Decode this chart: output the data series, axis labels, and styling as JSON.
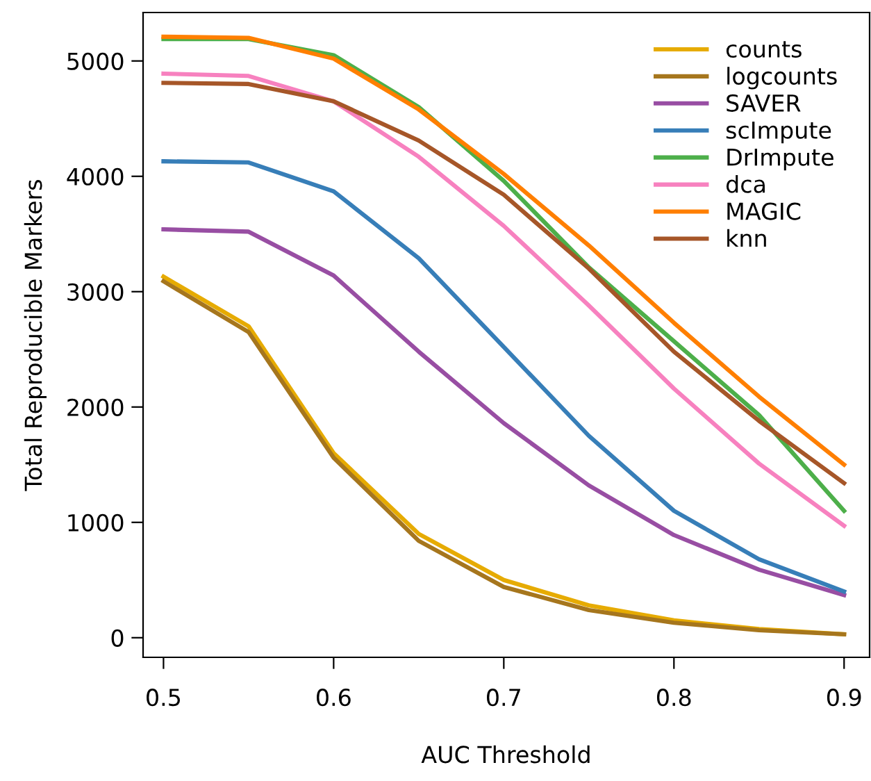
{
  "chart_data": {
    "type": "line",
    "xlabel": "AUC Threshold",
    "ylabel": "Total Reproducible Markers",
    "x": [
      0.5,
      0.55,
      0.6,
      0.65,
      0.7,
      0.75,
      0.8,
      0.85,
      0.9
    ],
    "series": [
      {
        "name": "counts",
        "color": "#e6ab02",
        "values": [
          3130,
          2700,
          1600,
          900,
          500,
          280,
          150,
          75,
          30
        ]
      },
      {
        "name": "logcounts",
        "color": "#a6761d",
        "values": [
          3090,
          2650,
          1560,
          840,
          440,
          240,
          130,
          65,
          30
        ]
      },
      {
        "name": "SAVER",
        "color": "#984ea3",
        "values": [
          3540,
          3520,
          3140,
          2480,
          1860,
          1320,
          890,
          590,
          370
        ]
      },
      {
        "name": "scImpute",
        "color": "#377eb8",
        "values": [
          4130,
          4120,
          3870,
          3290,
          2520,
          1750,
          1100,
          680,
          400
        ]
      },
      {
        "name": "DrImpute",
        "color": "#4daf4a",
        "values": [
          5190,
          5190,
          5050,
          4600,
          3960,
          3210,
          2570,
          1930,
          1100
        ]
      },
      {
        "name": "dca",
        "color": "#f781bf",
        "values": [
          4890,
          4870,
          4650,
          4170,
          3570,
          2880,
          2160,
          1510,
          970
        ]
      },
      {
        "name": "MAGIC",
        "color": "#ff7f00",
        "values": [
          5210,
          5200,
          5020,
          4580,
          4020,
          3400,
          2730,
          2090,
          1500
        ]
      },
      {
        "name": "knn",
        "color": "#a65628",
        "values": [
          4810,
          4800,
          4650,
          4310,
          3840,
          3200,
          2480,
          1880,
          1340
        ]
      }
    ],
    "xlim": [
      0.488,
      0.915
    ],
    "ylim": [
      -170,
      5420
    ],
    "xticks": [
      0.5,
      0.6,
      0.7,
      0.8,
      0.9
    ],
    "yticks": [
      0,
      1000,
      2000,
      3000,
      4000,
      5000
    ],
    "grid": false,
    "legend": "top right",
    "line_style": "solid",
    "marker": "none"
  }
}
